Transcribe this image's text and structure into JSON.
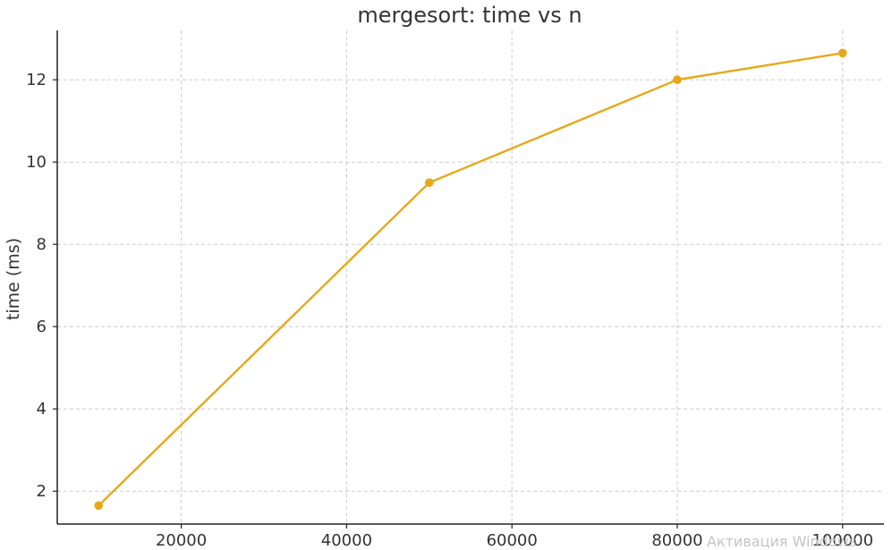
{
  "chart_data": {
    "type": "line",
    "title": "mergesort: time vs n",
    "xlabel": "",
    "ylabel": "time (ms)",
    "x": [
      10000,
      50000,
      80000,
      100000
    ],
    "series": [
      {
        "values": [
          1.65,
          9.5,
          12.0,
          12.65
        ]
      }
    ],
    "xlim": [
      5000,
      105000
    ],
    "ylim": [
      1.2,
      13.2
    ],
    "xticks": [
      20000,
      40000,
      60000,
      80000,
      100000
    ],
    "yticks": [
      2,
      4,
      6,
      8,
      10,
      12
    ],
    "grid": true,
    "colors": {
      "line": "#e6a817",
      "axis": "#222222",
      "grid": "#cccccc",
      "text": "#333333"
    }
  },
  "watermark": {
    "text": "Активация Windows"
  }
}
